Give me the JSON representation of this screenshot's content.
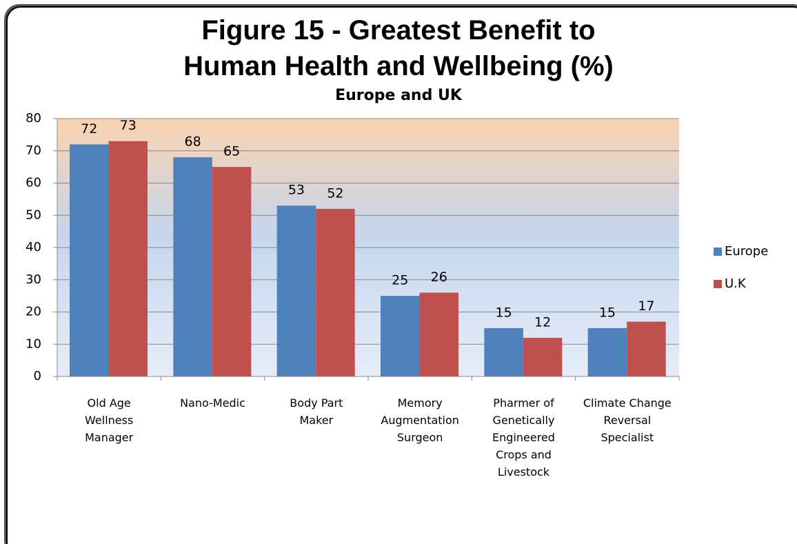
{
  "chart_data": {
    "type": "bar",
    "title": "Figure 15 - Greatest Benefit to Human Health and Wellbeing (%)",
    "subtitle": "Europe and UK",
    "categories": [
      "Old Age Wellness Manager",
      "Nano-Medic",
      "Body Part Maker",
      "Memory Augmentation Surgeon",
      "Pharmer of Genetically Engineered Crops and Livestock",
      "Climate Change Reversal Specialist"
    ],
    "series": [
      {
        "name": "Europe",
        "color": "#4f81bd",
        "values": [
          72,
          68,
          53,
          25,
          15,
          15
        ]
      },
      {
        "name": "U.K",
        "color": "#c0504d",
        "values": [
          73,
          65,
          52,
          26,
          12,
          17
        ]
      }
    ],
    "ylim": [
      0,
      80
    ],
    "yticks": [
      0,
      10,
      20,
      30,
      40,
      50,
      60,
      70,
      80
    ],
    "grid": true,
    "legend": "right"
  }
}
